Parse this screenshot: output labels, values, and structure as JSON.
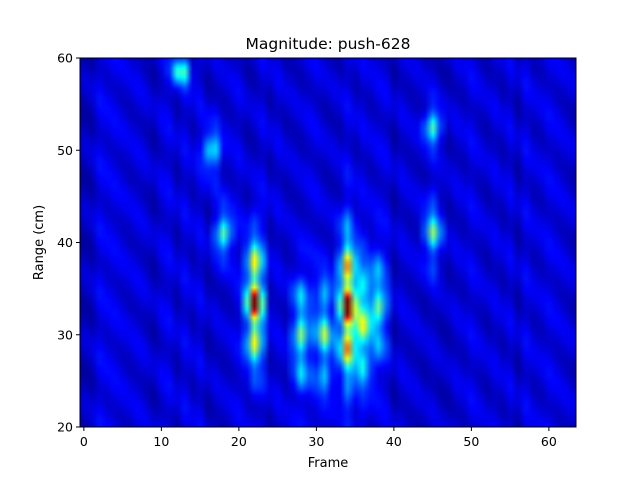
{
  "chart_data": {
    "type": "heatmap",
    "title": "Magnitude: push-628",
    "xlabel": "Frame",
    "ylabel": "Range (cm)",
    "colormap": "jet",
    "xlim": [
      -0.5,
      63.5
    ],
    "ylim": [
      20,
      60
    ],
    "xticks": [
      0,
      10,
      20,
      30,
      40,
      50,
      60
    ],
    "yticks": [
      20,
      30,
      40,
      50,
      60
    ],
    "grid": false,
    "legend": "none",
    "value_range": [
      0,
      1
    ],
    "features": [
      {
        "frame": 22,
        "range_center": 33.5,
        "peak": 0.95,
        "range_extent": [
          23,
          41
        ]
      },
      {
        "frame": 34,
        "range_center": 33.0,
        "peak": 1.0,
        "range_extent": [
          21,
          41
        ]
      },
      {
        "frame": 28,
        "range_center": 30.0,
        "peak": 0.45,
        "range_extent": [
          21,
          38
        ]
      },
      {
        "frame": 31,
        "range_center": 30.0,
        "peak": 0.45,
        "range_extent": [
          21,
          38
        ]
      },
      {
        "frame": 36,
        "range_center": 31.0,
        "peak": 0.5,
        "range_extent": [
          22,
          40
        ]
      },
      {
        "frame": 38,
        "range_center": 33.0,
        "peak": 0.4,
        "range_extent": [
          25,
          40
        ]
      },
      {
        "frame": 45,
        "range_center": 41.0,
        "peak": 0.42,
        "range_extent": [
          36,
          46
        ]
      },
      {
        "frame": 45,
        "range_center": 52.5,
        "peak": 0.38,
        "range_extent": [
          50,
          57
        ]
      },
      {
        "frame": 12.5,
        "range_center": 58.5,
        "peak": 0.4,
        "range_extent": [
          55,
          60
        ]
      },
      {
        "frame": 16.5,
        "range_center": 50.0,
        "peak": 0.35,
        "range_extent": [
          46,
          54
        ]
      },
      {
        "frame": 18,
        "range_center": 41.0,
        "peak": 0.4,
        "range_extent": [
          37,
          45
        ]
      }
    ]
  }
}
